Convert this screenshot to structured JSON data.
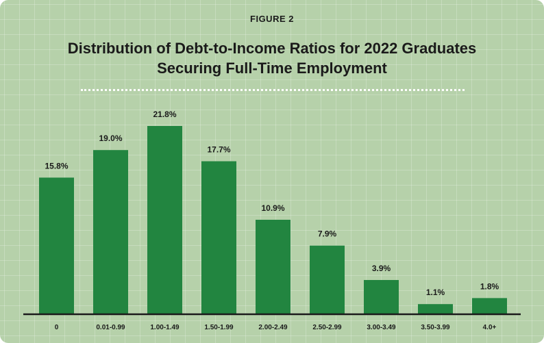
{
  "header": {
    "eyebrow": "FIGURE 2",
    "title_line1": "Distribution of Debt-to-Income Ratios for 2022 Graduates",
    "title_line2": "Securing Full-Time Employment"
  },
  "colors": {
    "bar": "#228540",
    "background": "#b6d1aa",
    "axis": "#1a1a1a"
  },
  "chart_data": {
    "type": "bar",
    "title": "Distribution of Debt-to-Income Ratios for 2022 Graduates Securing Full-Time Employment",
    "xlabel": "",
    "ylabel": "",
    "categories": [
      "0",
      "0.01-0.99",
      "1.00-1.49",
      "1.50-1.99",
      "2.00-2.49",
      "2.50-2.99",
      "3.00-3.49",
      "3.50-3.99",
      "4.0+"
    ],
    "values": [
      15.8,
      19.0,
      21.8,
      17.7,
      10.9,
      7.9,
      3.9,
      1.1,
      1.8
    ],
    "value_labels": [
      "15.8%",
      "19.0%",
      "21.8%",
      "17.7%",
      "10.9%",
      "7.9%",
      "3.9%",
      "1.1%",
      "1.8%"
    ],
    "ylim": [
      0,
      21.8
    ],
    "grid": false,
    "legend": "none"
  }
}
